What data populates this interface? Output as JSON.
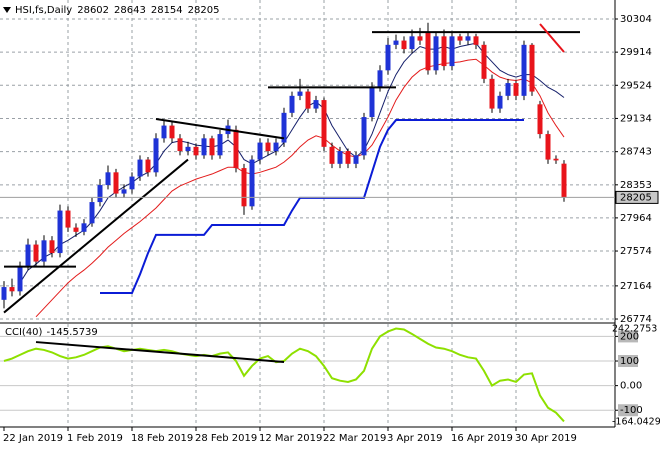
{
  "chart_data": [
    {
      "type": "candlestick",
      "title": "HSI,fs,Daily",
      "categories": [
        "22 Jan 2019",
        null,
        null,
        null,
        null,
        null,
        null,
        null,
        "1 Feb 2019",
        null,
        null,
        null,
        null,
        null,
        null,
        null,
        "18 Feb 2019",
        null,
        null,
        null,
        null,
        null,
        null,
        null,
        "28 Feb 2019",
        null,
        null,
        null,
        null,
        null,
        null,
        null,
        "12 Mar 2019",
        null,
        null,
        null,
        null,
        null,
        null,
        null,
        "22 Mar 2019",
        null,
        null,
        null,
        null,
        null,
        null,
        null,
        "3 Apr 2019",
        null,
        null,
        null,
        null,
        null,
        null,
        null,
        "16 Apr 2019",
        null,
        null,
        null,
        null,
        null,
        null,
        null,
        "30 Apr 2019",
        null,
        null,
        null,
        null,
        null,
        null
      ],
      "open": [
        27000,
        27150,
        27100,
        27400,
        27650,
        27450,
        27700,
        27550,
        28050,
        27850,
        27800,
        27900,
        28150,
        28350,
        28500,
        28250,
        28300,
        28450,
        28650,
        28500,
        28900,
        29050,
        28900,
        28750,
        28800,
        28700,
        28900,
        28700,
        28950,
        29000,
        28550,
        28100,
        28650,
        28850,
        28750,
        28850,
        29200,
        29400,
        29450,
        29250,
        29350,
        28800,
        28600,
        28750,
        28600,
        28700,
        29150,
        29500,
        29700,
        30000,
        30050,
        29950,
        30100,
        30150,
        29700,
        30100,
        29750,
        30100,
        30050,
        30100,
        30000,
        29600,
        29250,
        29400,
        29550,
        29400,
        30000,
        29300,
        28950,
        28660,
        28602
      ],
      "high": [
        27220,
        27250,
        27450,
        27720,
        27700,
        27760,
        27750,
        28120,
        28100,
        27900,
        27950,
        28200,
        28420,
        28580,
        28540,
        28360,
        28500,
        28700,
        28680,
        28960,
        29120,
        29100,
        28950,
        28860,
        28840,
        28950,
        28930,
        29000,
        29120,
        29050,
        28600,
        28700,
        28900,
        28900,
        28900,
        29260,
        29450,
        29600,
        29480,
        29400,
        29380,
        28850,
        28800,
        28780,
        28740,
        29200,
        29560,
        29760,
        30080,
        30120,
        30100,
        30180,
        30200,
        30260,
        30150,
        30180,
        30150,
        30130,
        30140,
        30130,
        30040,
        29650,
        29450,
        29600,
        29580,
        30050,
        30020,
        29340,
        28990,
        28700,
        28643
      ],
      "low": [
        26900,
        27040,
        27050,
        27350,
        27400,
        27400,
        27500,
        27500,
        27800,
        27740,
        27760,
        27860,
        28100,
        28300,
        28200,
        28200,
        28250,
        28400,
        28450,
        28450,
        28850,
        28850,
        28700,
        28700,
        28650,
        28660,
        28650,
        28660,
        28900,
        28500,
        28000,
        28060,
        28600,
        28700,
        28700,
        28800,
        29150,
        29350,
        29200,
        29200,
        28750,
        28550,
        28550,
        28550,
        28550,
        28650,
        29100,
        29450,
        29650,
        29950,
        29900,
        29900,
        30000,
        29650,
        29650,
        29700,
        29700,
        30000,
        30000,
        29950,
        29550,
        29200,
        29200,
        29350,
        29350,
        29350,
        29400,
        28900,
        28600,
        28600,
        28154
      ],
      "close": [
        27150,
        27100,
        27400,
        27650,
        27450,
        27700,
        27550,
        28050,
        27850,
        27800,
        27900,
        28150,
        28350,
        28500,
        28250,
        28300,
        28450,
        28650,
        28500,
        28900,
        29050,
        28900,
        28750,
        28800,
        28700,
        28900,
        28700,
        28950,
        29050,
        28550,
        28100,
        28650,
        28850,
        28750,
        28850,
        29200,
        29400,
        29450,
        29250,
        29350,
        28800,
        28600,
        28750,
        28600,
        28700,
        29150,
        29500,
        29700,
        30000,
        30050,
        29950,
        30100,
        30050,
        29700,
        30100,
        29750,
        30100,
        30050,
        30100,
        30000,
        29600,
        29250,
        29400,
        29550,
        29400,
        30000,
        29450,
        28950,
        28650,
        28640,
        28205
      ],
      "up_color": "#1f33d6",
      "down_color": "#e8141b",
      "ylim": [
        26739,
        30504
      ],
      "yticks": [
        30304,
        29914,
        29524,
        29134,
        28743,
        28353,
        27964,
        27574,
        27164,
        26774
      ],
      "grid": true,
      "overlays": [
        {
          "color": "#16206b",
          "width": 1,
          "values": [
            null,
            null,
            27200,
            27350,
            27420,
            27500,
            27550,
            27650,
            27700,
            27760,
            27820,
            27920,
            28050,
            28200,
            28270,
            28330,
            28380,
            28450,
            28500,
            28600,
            28750,
            28850,
            28870,
            28850,
            28820,
            28810,
            28800,
            28820,
            28880,
            28800,
            28650,
            28600,
            28650,
            28700,
            28750,
            28850,
            29000,
            29150,
            29280,
            29330,
            29250,
            29050,
            28900,
            28750,
            28680,
            28760,
            28950,
            29200,
            29450,
            29650,
            29800,
            29900,
            29980,
            29950,
            29950,
            29980,
            29950,
            29980,
            30000,
            30020,
            29900,
            29800,
            29700,
            29650,
            29620,
            29650,
            29650,
            29580,
            29500,
            29450,
            29380
          ]
        },
        {
          "color": "#e31b1b",
          "width": 1,
          "values": [
            null,
            null,
            null,
            null,
            26800,
            26900,
            27000,
            27100,
            27200,
            27280,
            27350,
            27430,
            27520,
            27620,
            27700,
            27780,
            27850,
            27920,
            28000,
            28080,
            28180,
            28280,
            28340,
            28380,
            28420,
            28450,
            28480,
            28520,
            28560,
            28560,
            28500,
            28480,
            28500,
            28530,
            28560,
            28620,
            28700,
            28800,
            28880,
            28930,
            28900,
            28820,
            28750,
            28700,
            28680,
            28720,
            28820,
            28980,
            29150,
            29350,
            29500,
            29620,
            29700,
            29740,
            29760,
            29780,
            29790,
            29800,
            29820,
            29830,
            29760,
            29680,
            29620,
            29590,
            29580,
            29600,
            29550,
            29400,
            29200,
            29050,
            28915
          ]
        },
        {
          "color": "#0b1cd6",
          "width": 2,
          "values": [
            null,
            null,
            null,
            null,
            null,
            null,
            null,
            null,
            null,
            null,
            null,
            null,
            27080,
            27080,
            27080,
            27080,
            27080,
            27300,
            27550,
            27764,
            27764,
            27764,
            27764,
            27764,
            27764,
            27764,
            27880,
            27880,
            27880,
            27880,
            27880,
            27880,
            27880,
            27880,
            27880,
            27880,
            28050,
            28200,
            28200,
            28200,
            28200,
            28200,
            28200,
            28200,
            28200,
            28200,
            28500,
            28800,
            29000,
            29115,
            29115,
            29115,
            29115,
            29115,
            29115,
            29115,
            29115,
            29115,
            29115,
            29115,
            29115,
            29115,
            29115,
            29115,
            29115,
            29115,
            null,
            null,
            null,
            null,
            null
          ]
        }
      ],
      "trendlines": [
        {
          "from": 0,
          "to": 9,
          "start": 27390,
          "end": 27390,
          "color": "#000000"
        },
        {
          "from": 0,
          "to": 23,
          "start": 26850,
          "end": 28650,
          "color": "#000000"
        },
        {
          "from": 19,
          "to": 35,
          "start": 29127,
          "end": 28900,
          "color": "#000000"
        },
        {
          "from": 33,
          "to": 49,
          "start": 29500,
          "end": 29500,
          "color": "#000000"
        },
        {
          "from": 46,
          "to": 72,
          "start": 30150,
          "end": 30150,
          "color": "#000000"
        },
        {
          "from": 67,
          "to": 70,
          "start": 30245,
          "end": 29916,
          "color": "#e8141b"
        }
      ]
    },
    {
      "type": "line",
      "title": "CCI(40)",
      "series": [
        {
          "color": "#8ee000",
          "values": [
            100,
            110,
            125,
            140,
            150,
            145,
            135,
            120,
            110,
            115,
            125,
            140,
            155,
            160,
            150,
            140,
            145,
            150,
            145,
            140,
            145,
            140,
            130,
            125,
            120,
            125,
            120,
            130,
            135,
            100,
            40,
            80,
            110,
            120,
            95,
            100,
            130,
            150,
            140,
            120,
            80,
            30,
            20,
            15,
            25,
            60,
            150,
            200,
            220,
            232,
            228,
            210,
            190,
            170,
            155,
            150,
            140,
            125,
            115,
            110,
            60,
            0,
            20,
            25,
            15,
            45,
            50,
            -40,
            -90,
            -110,
            -145.5739
          ]
        }
      ],
      "ylim": [
        -164.0429,
        242.2753
      ],
      "yticks": [
        200,
        100,
        {
          "value": 0,
          "label": "0.00"
        },
        -100
      ],
      "trendlines": [
        {
          "from": 4,
          "to": 35,
          "start": 177,
          "end": 96,
          "color": "#000000"
        }
      ]
    }
  ]
}
